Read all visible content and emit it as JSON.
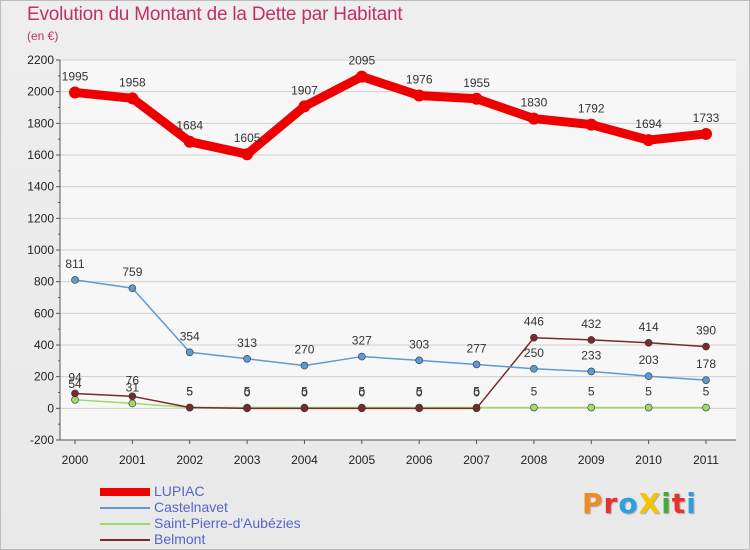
{
  "title": "Evolution du Montant de la Dette par Habitant",
  "subtitle": "(en €)",
  "brand": {
    "text": "ProXiti",
    "colors": [
      "#f08a24",
      "#e8312f",
      "#2e9ee0",
      "#f5c400",
      "#4aa83a",
      "#e8312f",
      "#2e9ee0"
    ]
  },
  "chart_data": {
    "type": "line",
    "title": "Evolution du Montant de la Dette par Habitant",
    "subtitle": "(en €)",
    "xlabel": "",
    "ylabel": "",
    "x": [
      "2000",
      "2001",
      "2002",
      "2003",
      "2004",
      "2005",
      "2006",
      "2007",
      "2008",
      "2009",
      "2010",
      "2011"
    ],
    "ylim": [
      -200,
      2200
    ],
    "yticks": [
      -200,
      0,
      200,
      400,
      600,
      800,
      1000,
      1200,
      1400,
      1600,
      1800,
      2000,
      2200
    ],
    "grid": "horizontal",
    "legend_position": "bottom-left",
    "series": [
      {
        "name": "LUPIAC",
        "color": "#ee0000",
        "values": [
          1995,
          1958,
          1684,
          1605,
          1907,
          2095,
          1976,
          1955,
          1830,
          1792,
          1694,
          1733
        ]
      },
      {
        "name": "Castelnavet",
        "color": "#5b9bd5",
        "values": [
          811,
          759,
          354,
          313,
          270,
          327,
          303,
          277,
          250,
          233,
          203,
          178
        ]
      },
      {
        "name": "Saint-Pierre-d'Aubézies",
        "color": "#9fdb6a",
        "values": [
          54,
          31,
          5,
          5,
          5,
          5,
          5,
          5,
          5,
          5,
          5,
          5
        ]
      },
      {
        "name": "Belmont",
        "color": "#7a2a2a",
        "values": [
          94,
          76,
          5,
          0,
          0,
          0,
          0,
          0,
          446,
          432,
          414,
          390
        ]
      }
    ]
  }
}
